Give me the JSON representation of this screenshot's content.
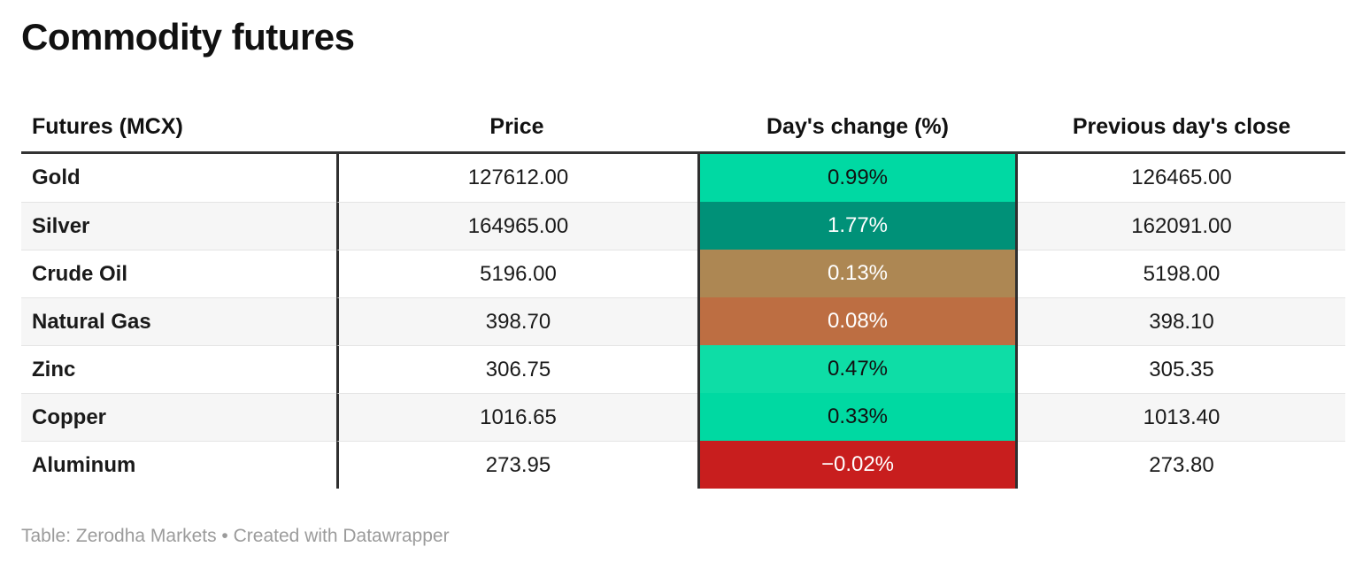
{
  "title": "Commodity futures",
  "table": {
    "columns": [
      "Futures (MCX)",
      "Price",
      "Day's change (%)",
      "Previous day's close"
    ],
    "rows": [
      {
        "name": "Gold",
        "price": "127612.00",
        "change": "0.99%",
        "prev_close": "126465.00",
        "change_bg": "#00d9a3",
        "change_text": "#111111"
      },
      {
        "name": "Silver",
        "price": "164965.00",
        "change": "1.77%",
        "prev_close": "162091.00",
        "change_bg": "#009178",
        "change_text": "#ffffff"
      },
      {
        "name": "Crude Oil",
        "price": "5196.00",
        "change": "0.13%",
        "prev_close": "5198.00",
        "change_bg": "#ad8753",
        "change_text": "#ffffff"
      },
      {
        "name": "Natural Gas",
        "price": "398.70",
        "change": "0.08%",
        "prev_close": "398.10",
        "change_bg": "#bd6e42",
        "change_text": "#ffffff"
      },
      {
        "name": "Zinc",
        "price": "306.75",
        "change": "0.47%",
        "prev_close": "305.35",
        "change_bg": "#0edda6",
        "change_text": "#111111"
      },
      {
        "name": "Copper",
        "price": "1016.65",
        "change": "0.33%",
        "prev_close": "1013.40",
        "change_bg": "#00d9a2",
        "change_text": "#111111"
      },
      {
        "name": "Aluminum",
        "price": "273.95",
        "change": "−0.02%",
        "prev_close": "273.80",
        "change_bg": "#c81e1e",
        "change_text": "#ffffff"
      }
    ]
  },
  "footer": "Table: Zerodha Markets • Created with Datawrapper",
  "colors": {
    "header_rule": "#333333",
    "column_rule": "#2f2f2f",
    "row_separator": "#e4e4e4",
    "row_alt_bg": "#f6f6f6",
    "footer_text": "#9b9b9b",
    "positive_strong": "#009178",
    "positive": "#00d9a3",
    "weak_positive": "#ad8753",
    "weakest_positive": "#bd6e42",
    "negative": "#c81e1e"
  },
  "chart_data": {
    "type": "table",
    "title": "Commodity futures",
    "columns": [
      "Futures (MCX)",
      "Price",
      "Day's change (%)",
      "Previous day's close"
    ],
    "rows": [
      [
        "Gold",
        127612.0,
        0.99,
        126465.0
      ],
      [
        "Silver",
        164965.0,
        1.77,
        162091.0
      ],
      [
        "Crude Oil",
        5196.0,
        0.13,
        5198.0
      ],
      [
        "Natural Gas",
        398.7,
        0.08,
        398.1
      ],
      [
        "Zinc",
        306.75,
        0.47,
        305.35
      ],
      [
        "Copper",
        1016.65,
        0.33,
        1013.4
      ],
      [
        "Aluminum",
        273.95,
        -0.02,
        273.8
      ]
    ],
    "heatmap_column": "Day's change (%)",
    "source_note": "Table: Zerodha Markets • Created with Datawrapper"
  }
}
